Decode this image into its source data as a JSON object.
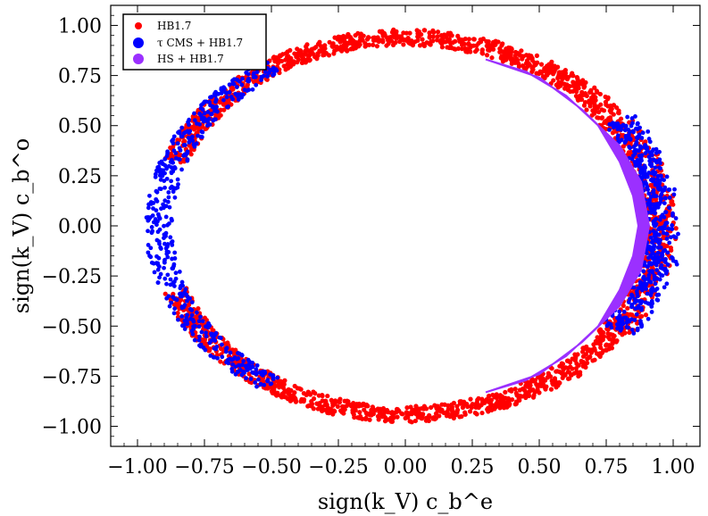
{
  "chart_data": {
    "type": "scatter",
    "title": "",
    "xlabel": "sign(k_V) c_b^e",
    "ylabel": "sign(k_V) c_b^o",
    "xlim": [
      -1.1,
      1.1
    ],
    "ylim": [
      -1.1,
      1.1
    ],
    "xticks": [
      -1.0,
      -0.75,
      -0.5,
      -0.25,
      0.0,
      0.25,
      0.5,
      0.75,
      1.0
    ],
    "yticks": [
      -1.0,
      -0.75,
      -0.5,
      -0.25,
      0.0,
      0.25,
      0.5,
      0.75,
      1.0
    ],
    "xtick_labels": [
      "−1.00",
      "−0.75",
      "−0.50",
      "−0.25",
      "0.00",
      "0.25",
      "0.50",
      "0.75",
      "1.00"
    ],
    "ytick_labels": [
      "−1.00",
      "−0.75",
      "−0.50",
      "−0.25",
      "0.00",
      "0.25",
      "0.50",
      "0.75",
      "1.00"
    ],
    "grid": false,
    "legend_position": "top-left",
    "series": [
      {
        "name": "HB1.7",
        "color": "#ff0000",
        "shape": "ring",
        "center": [
          0.0,
          0.0
        ],
        "radius_x": [
          0.87,
          0.96
        ],
        "radius_y": [
          0.9,
          0.98
        ],
        "angle_range_deg": [
          -160,
          160
        ]
      },
      {
        "name": "τ CMS + HB1.7",
        "color": "#0000ff",
        "shape": "ring-arcs",
        "center": [
          0.0,
          0.0
        ],
        "radius_x": [
          0.87,
          0.97
        ],
        "radius_y": [
          0.9,
          0.98
        ],
        "arcs_deg": [
          [
            122,
            238
          ],
          [
            -34,
            34
          ]
        ]
      },
      {
        "name": "HS + HB1.7",
        "color": "#9b30ff",
        "shape": "crescent",
        "points": [
          [
            0.3,
            0.83
          ],
          [
            0.45,
            0.77
          ],
          [
            0.6,
            0.65
          ],
          [
            0.72,
            0.5
          ],
          [
            0.8,
            0.32
          ],
          [
            0.85,
            0.15
          ],
          [
            0.87,
            0.0
          ],
          [
            0.85,
            -0.15
          ],
          [
            0.8,
            -0.32
          ],
          [
            0.72,
            -0.5
          ],
          [
            0.6,
            -0.65
          ],
          [
            0.45,
            -0.77
          ],
          [
            0.3,
            -0.83
          ],
          [
            0.5,
            -0.74
          ],
          [
            0.66,
            -0.58
          ],
          [
            0.8,
            -0.4
          ],
          [
            0.88,
            -0.22
          ],
          [
            0.91,
            0.0
          ],
          [
            0.88,
            0.22
          ],
          [
            0.8,
            0.4
          ],
          [
            0.66,
            0.58
          ],
          [
            0.5,
            0.74
          ]
        ]
      }
    ]
  }
}
